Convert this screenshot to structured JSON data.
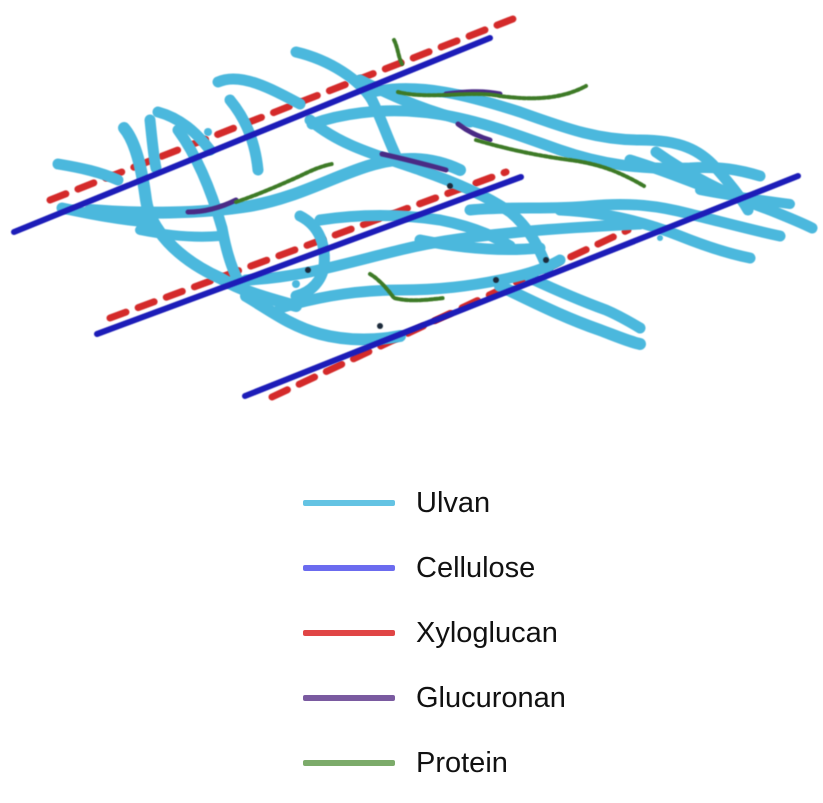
{
  "diagram": {
    "colors": {
      "ulvan": "#4cb8dd",
      "cellulose": "#1f1fb8",
      "xyloglucan": "#d42a2a",
      "glucuronan": "#4a2a85",
      "protein": "#3c7a28"
    }
  },
  "legend": {
    "items": [
      {
        "label": "Ulvan",
        "color": "#64c3e3"
      },
      {
        "label": "Cellulose",
        "color": "#6b6bef"
      },
      {
        "label": "Xyloglucan",
        "color": "#e04545"
      },
      {
        "label": "Glucuronan",
        "color": "#7a5aa0"
      },
      {
        "label": "Protein",
        "color": "#7cab6a"
      }
    ]
  }
}
